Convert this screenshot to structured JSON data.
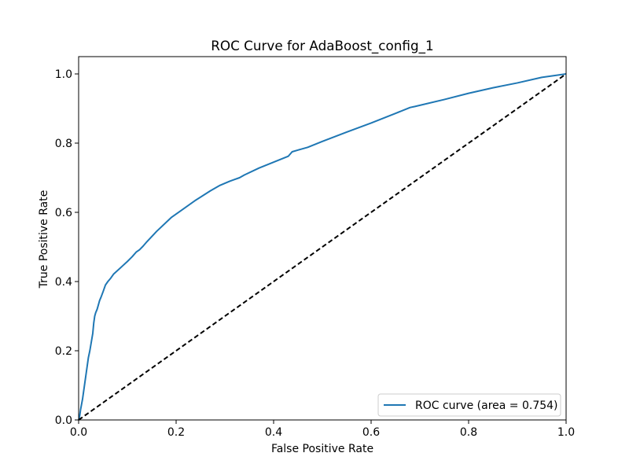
{
  "chart_data": {
    "type": "line",
    "title": "ROC Curve for AdaBoost_config_1",
    "xlabel": "False Positive Rate",
    "ylabel": "True Positive Rate",
    "xlim": [
      0.0,
      1.0
    ],
    "ylim": [
      0.0,
      1.05
    ],
    "xticks": [
      "0.0",
      "0.2",
      "0.4",
      "0.6",
      "0.8",
      "1.0"
    ],
    "yticks": [
      "0.0",
      "0.2",
      "0.4",
      "0.6",
      "0.8",
      "1.0"
    ],
    "xtick_values": [
      0.0,
      0.2,
      0.4,
      0.6,
      0.8,
      1.0
    ],
    "ytick_values": [
      0.0,
      0.2,
      0.4,
      0.6,
      0.8,
      1.0
    ],
    "grid": false,
    "legend_position": "lower-right",
    "series": [
      {
        "name": "ROC curve (area = 0.754)",
        "color": "#1f77b4",
        "style": "solid",
        "x": [
          0.0,
          0.002,
          0.004,
          0.006,
          0.008,
          0.01,
          0.012,
          0.015,
          0.018,
          0.02,
          0.023,
          0.026,
          0.029,
          0.031,
          0.033,
          0.035,
          0.038,
          0.041,
          0.043,
          0.046,
          0.05,
          0.055,
          0.06,
          0.066,
          0.072,
          0.08,
          0.09,
          0.1,
          0.11,
          0.118,
          0.125,
          0.132,
          0.14,
          0.16,
          0.19,
          0.21,
          0.24,
          0.27,
          0.29,
          0.31,
          0.32,
          0.33,
          0.34,
          0.37,
          0.4,
          0.43,
          0.438,
          0.45,
          0.47,
          0.5,
          0.55,
          0.6,
          0.65,
          0.68,
          0.69,
          0.75,
          0.8,
          0.85,
          0.9,
          0.95,
          1.0
        ],
        "y": [
          0.0,
          0.01,
          0.03,
          0.045,
          0.06,
          0.08,
          0.1,
          0.13,
          0.16,
          0.18,
          0.2,
          0.225,
          0.25,
          0.28,
          0.3,
          0.31,
          0.32,
          0.335,
          0.345,
          0.355,
          0.37,
          0.39,
          0.4,
          0.41,
          0.422,
          0.432,
          0.445,
          0.458,
          0.472,
          0.485,
          0.492,
          0.502,
          0.515,
          0.545,
          0.585,
          0.605,
          0.635,
          0.662,
          0.678,
          0.69,
          0.695,
          0.7,
          0.708,
          0.728,
          0.745,
          0.762,
          0.775,
          0.78,
          0.788,
          0.805,
          0.832,
          0.858,
          0.886,
          0.903,
          0.906,
          0.926,
          0.944,
          0.96,
          0.974,
          0.99,
          1.0
        ]
      },
      {
        "name": "",
        "color": "#000000",
        "style": "dashed",
        "x": [
          0.0,
          1.0
        ],
        "y": [
          0.0,
          1.0
        ]
      }
    ]
  }
}
